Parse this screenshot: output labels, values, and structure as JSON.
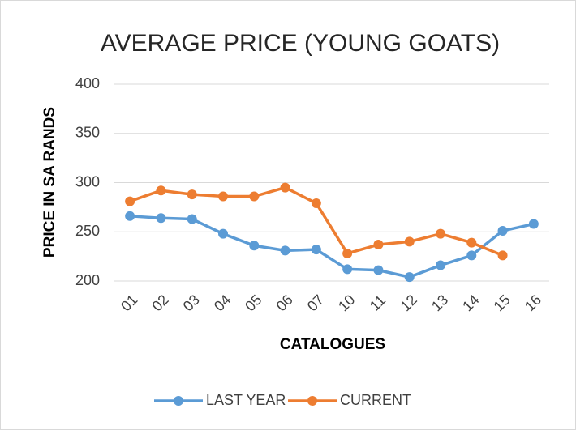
{
  "chart_data": {
    "type": "line",
    "title": "AVERAGE PRICE (YOUNG GOATS)",
    "x_label": "CATALOGUES",
    "y_label": "PRICE IN SA RANDS",
    "categories": [
      "01",
      "02",
      "03",
      "04",
      "05",
      "06",
      "07",
      "10",
      "11",
      "12",
      "13",
      "14",
      "15",
      "16"
    ],
    "series": [
      {
        "name": "LAST YEAR",
        "color": "#5b9bd5",
        "values": [
          266,
          264,
          263,
          248,
          236,
          231,
          232,
          212,
          211,
          204,
          216,
          226,
          251,
          258
        ]
      },
      {
        "name": "CURRENT",
        "color": "#ed7d31",
        "values": [
          281,
          292,
          288,
          286,
          286,
          295,
          279,
          228,
          237,
          240,
          248,
          239,
          226,
          null
        ]
      }
    ],
    "ylim": [
      200,
      400
    ],
    "yticks": [
      200,
      250,
      300,
      350,
      400
    ],
    "grid": true,
    "legend": "bottom"
  }
}
